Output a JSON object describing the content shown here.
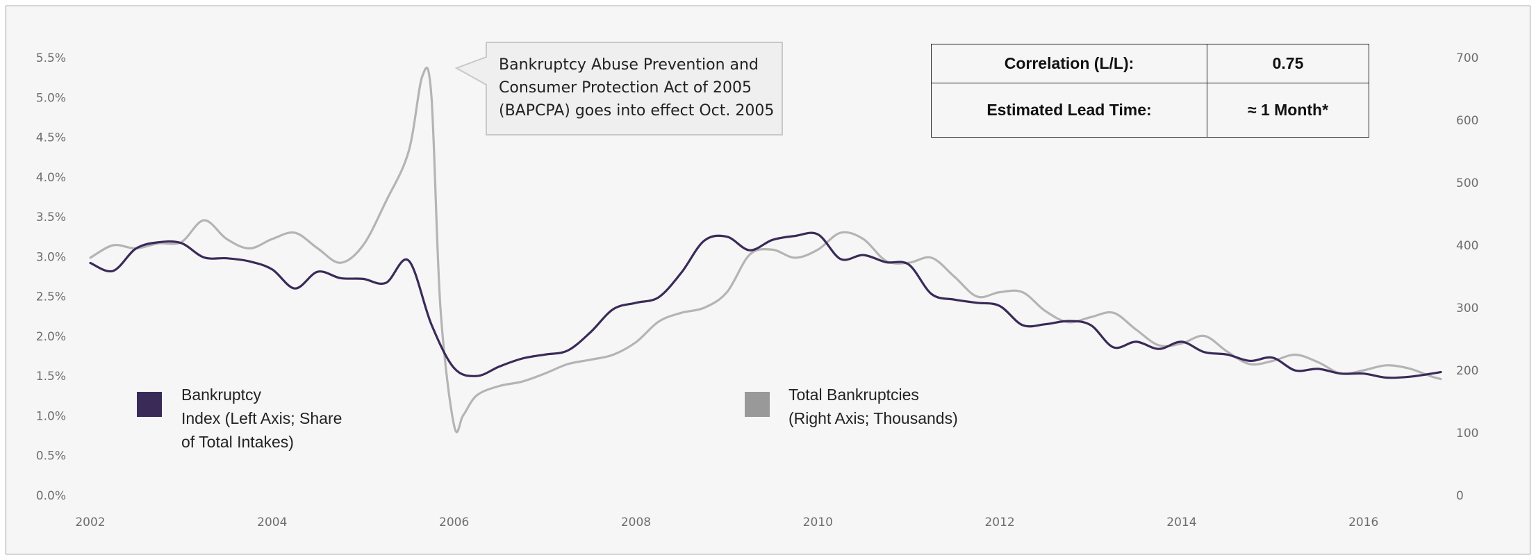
{
  "colors": {
    "index": "#3a2a58",
    "total": "#b4b4b4",
    "swatch_total": "#999999",
    "background": "#f6f6f6"
  },
  "chart_data": {
    "type": "line",
    "title": "",
    "xlabel": "",
    "ylabel_left": "",
    "ylabel_right": "",
    "xlim": [
      2002,
      2016.85
    ],
    "x_ticks": [
      "2002",
      "2004",
      "2006",
      "2008",
      "2010",
      "2012",
      "2014",
      "2016"
    ],
    "ylim_left": [
      0,
      5.5
    ],
    "ylim_right": [
      0,
      700
    ],
    "y_left_ticks": [
      "0.0%",
      "0.5%",
      "1.0%",
      "1.5%",
      "2.0%",
      "2.5%",
      "3.0%",
      "3.5%",
      "4.0%",
      "4.5%",
      "5.0%",
      "5.5%"
    ],
    "y_right_ticks": [
      "0",
      "100",
      "200",
      "300",
      "400",
      "500",
      "600",
      "700"
    ],
    "grid": false,
    "legend_position": "bottom-left and bottom-center",
    "series": [
      {
        "name": "Bankruptcy Index (Left Axis; Share of Total Intakes)",
        "axis": "left",
        "x": [
          2002.0,
          2002.25,
          2002.5,
          2002.75,
          2003.0,
          2003.25,
          2003.5,
          2003.75,
          2004.0,
          2004.25,
          2004.5,
          2004.75,
          2005.0,
          2005.25,
          2005.5,
          2005.75,
          2006.0,
          2006.25,
          2006.5,
          2006.75,
          2007.0,
          2007.25,
          2007.5,
          2007.75,
          2008.0,
          2008.25,
          2008.5,
          2008.75,
          2009.0,
          2009.25,
          2009.5,
          2009.75,
          2010.0,
          2010.25,
          2010.5,
          2010.75,
          2011.0,
          2011.25,
          2011.5,
          2011.75,
          2012.0,
          2012.25,
          2012.5,
          2012.75,
          2013.0,
          2013.25,
          2013.5,
          2013.75,
          2014.0,
          2014.25,
          2014.5,
          2014.75,
          2015.0,
          2015.25,
          2015.5,
          2015.75,
          2016.0,
          2016.25,
          2016.5,
          2016.75,
          2016.85
        ],
        "values": [
          2.92,
          2.82,
          3.1,
          3.18,
          3.17,
          2.99,
          2.98,
          2.94,
          2.84,
          2.6,
          2.81,
          2.73,
          2.72,
          2.67,
          2.95,
          2.15,
          1.6,
          1.5,
          1.62,
          1.72,
          1.77,
          1.82,
          2.05,
          2.34,
          2.42,
          2.49,
          2.8,
          3.2,
          3.25,
          3.08,
          3.21,
          3.26,
          3.28,
          2.97,
          3.02,
          2.93,
          2.9,
          2.53,
          2.46,
          2.42,
          2.38,
          2.14,
          2.15,
          2.19,
          2.14,
          1.86,
          1.93,
          1.84,
          1.93,
          1.8,
          1.77,
          1.69,
          1.73,
          1.57,
          1.59,
          1.53,
          1.53,
          1.48,
          1.49,
          1.53,
          1.55
        ]
      },
      {
        "name": "Total Bankruptcies (Right Axis; Thousands)",
        "axis": "right",
        "x": [
          2002.0,
          2002.25,
          2002.5,
          2002.75,
          2003.0,
          2003.25,
          2003.5,
          2003.75,
          2004.0,
          2004.25,
          2004.5,
          2004.75,
          2005.0,
          2005.25,
          2005.5,
          2005.65,
          2005.75,
          2005.85,
          2006.0,
          2006.1,
          2006.25,
          2006.5,
          2006.75,
          2007.0,
          2007.25,
          2007.5,
          2007.75,
          2008.0,
          2008.25,
          2008.5,
          2008.75,
          2009.0,
          2009.25,
          2009.5,
          2009.75,
          2010.0,
          2010.25,
          2010.5,
          2010.75,
          2011.0,
          2011.25,
          2011.5,
          2011.75,
          2012.0,
          2012.25,
          2012.5,
          2012.75,
          2013.0,
          2013.25,
          2013.5,
          2013.75,
          2014.0,
          2014.25,
          2014.5,
          2014.75,
          2015.0,
          2015.25,
          2015.5,
          2015.75,
          2016.0,
          2016.25,
          2016.5,
          2016.75,
          2016.85
        ],
        "values": [
          380,
          400,
          395,
          403,
          405,
          440,
          410,
          395,
          410,
          420,
          395,
          372,
          400,
          470,
          550,
          670,
          640,
          300,
          112,
          128,
          160,
          175,
          182,
          195,
          210,
          217,
          225,
          245,
          278,
          292,
          300,
          325,
          385,
          393,
          380,
          393,
          420,
          410,
          375,
          372,
          380,
          350,
          318,
          325,
          325,
          295,
          277,
          285,
          292,
          265,
          240,
          243,
          255,
          230,
          210,
          215,
          225,
          213,
          195,
          200,
          208,
          203,
          190,
          186
        ]
      }
    ],
    "annotation": {
      "lines": [
        "Bankruptcy Abuse Prevention and",
        "Consumer Protection Act of 2005",
        "(BAPCPA) goes into effect Oct. 2005"
      ]
    },
    "table": {
      "rows": [
        {
          "label": "Correlation (L/L):",
          "value": "0.75"
        },
        {
          "label": "Estimated Lead Time:",
          "value": "≈ 1 Month*"
        }
      ]
    },
    "legend": {
      "index_lines": [
        "Bankruptcy",
        "Index (Left Axis; Share",
        "of Total Intakes)"
      ],
      "total_lines": [
        "Total Bankruptcies",
        "(Right Axis; Thousands)"
      ]
    }
  }
}
